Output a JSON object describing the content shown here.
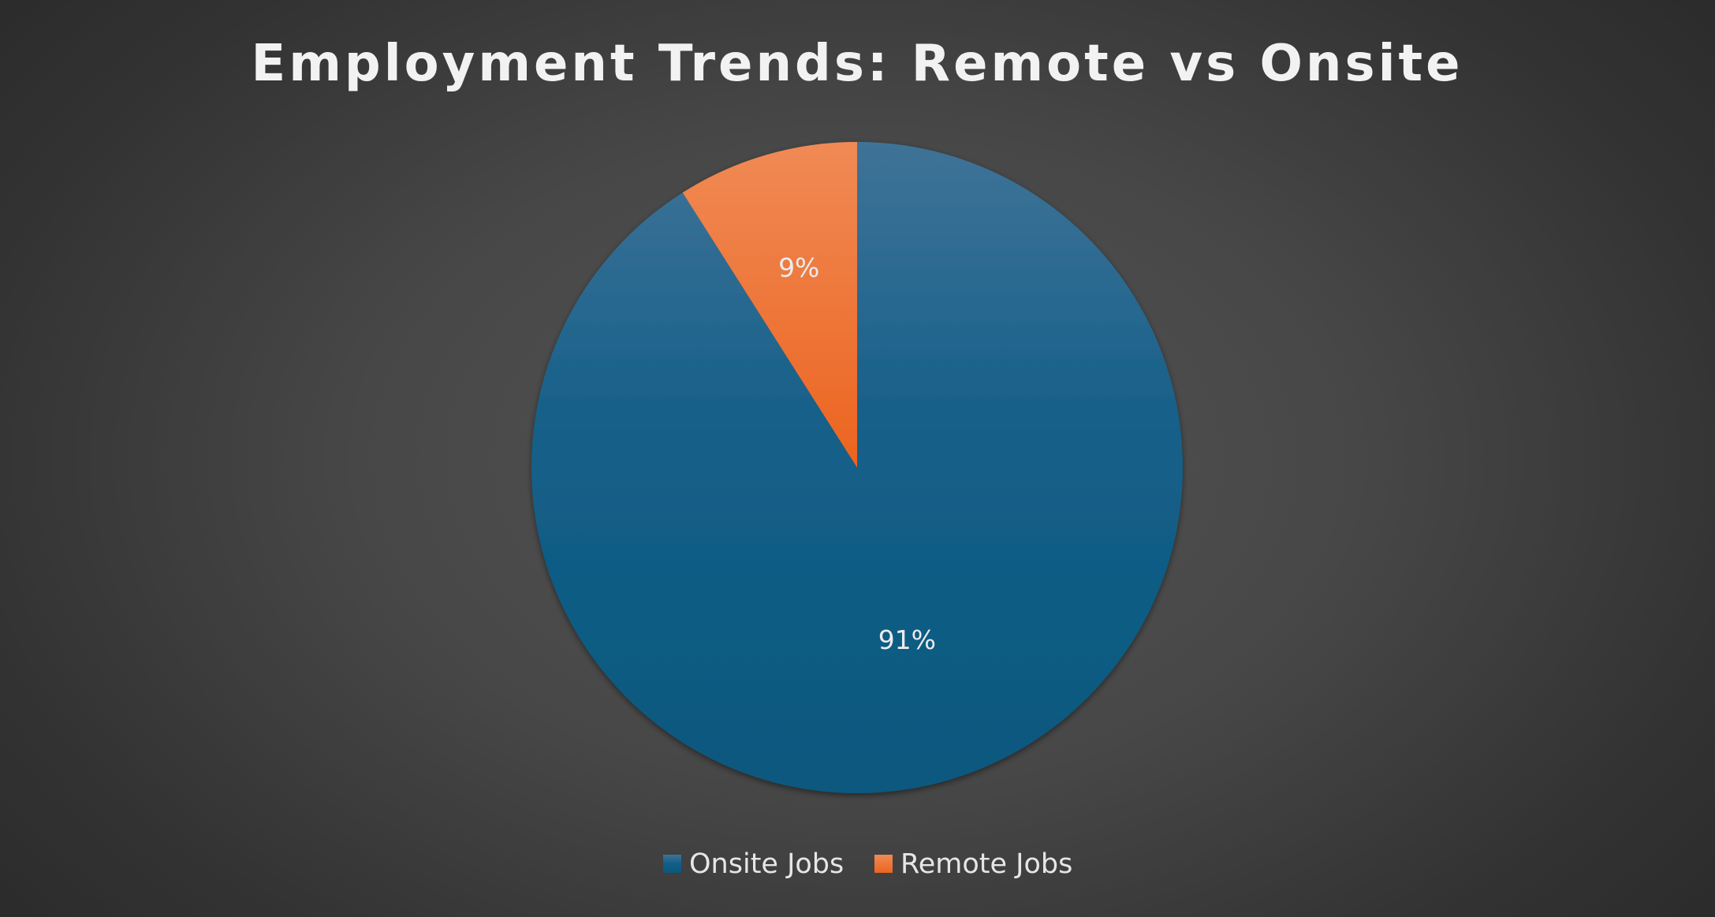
{
  "chart_data": {
    "type": "pie",
    "title": "Employment Trends: Remote vs Onsite",
    "categories": [
      "Onsite Jobs",
      "Remote Jobs"
    ],
    "values": [
      91,
      9
    ],
    "data_labels": [
      "91%",
      "9%"
    ],
    "colors": [
      "#0e5a82",
      "#f07030"
    ],
    "legend_position": "bottom",
    "start_angle_deg": 0,
    "direction": "counterclockwise-from-top"
  }
}
